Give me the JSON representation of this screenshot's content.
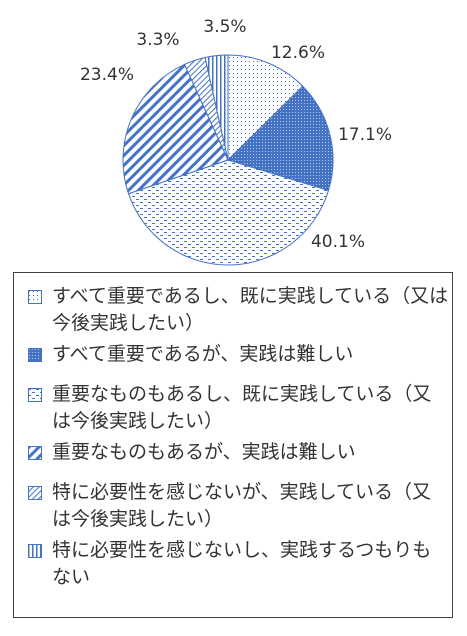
{
  "chart_data": {
    "type": "pie",
    "title": "",
    "slices": [
      {
        "label": "すべて重要であるし、既に実践している（又は今後実践したい）",
        "value": 12.6,
        "value_label": "12.6%",
        "pattern": "dots-sparse"
      },
      {
        "label": "すべて重要であるが、実践は難しい",
        "value": 17.1,
        "value_label": "17.1%",
        "pattern": "dots-dense"
      },
      {
        "label": "重要なものもあるし、既に実践している（又は今後実践したい）",
        "value": 40.1,
        "value_label": "40.1%",
        "pattern": "horizontal-dashes"
      },
      {
        "label": "重要なものもあるが、実践は難しい",
        "value": 23.4,
        "value_label": "23.4%",
        "pattern": "diagonal-stripes-wide"
      },
      {
        "label": "特に必要性を感じないが、実践している（又は今後実践したい）",
        "value": 3.3,
        "value_label": "3.3%",
        "pattern": "diagonal-stripes-light"
      },
      {
        "label": "特に必要性を感じないし、実践するつもりもない",
        "value": 3.5,
        "value_label": "3.5%",
        "pattern": "vertical-stripes"
      }
    ],
    "start_angle": "12 o'clock",
    "direction": "clockwise",
    "legend_position": "bottom"
  },
  "colors": {
    "accent": "#4472c4",
    "outline": "#4472c4",
    "text": "#333333"
  }
}
